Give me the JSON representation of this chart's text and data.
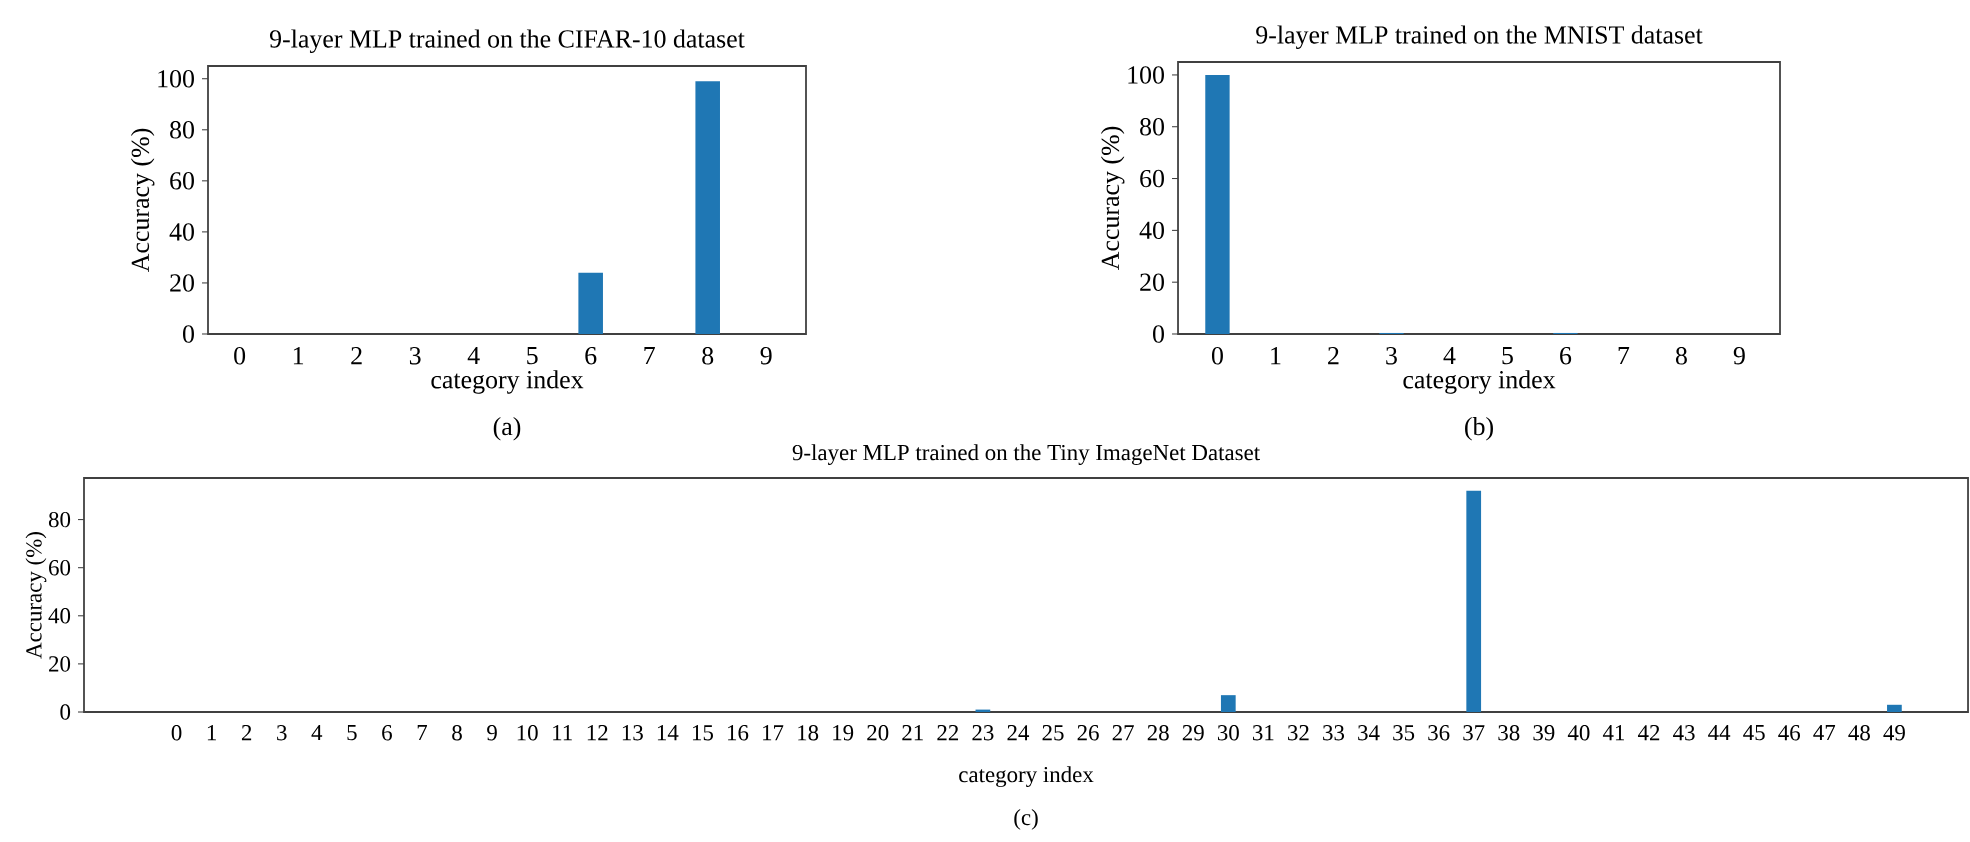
{
  "chart_data": [
    {
      "type": "bar",
      "title": "9-layer MLP trained on the CIFAR-10 dataset",
      "xlabel": "category index",
      "ylabel": "Accuracy (%)",
      "categories": [
        "0",
        "1",
        "2",
        "3",
        "4",
        "5",
        "6",
        "7",
        "8",
        "9"
      ],
      "values": [
        0,
        0,
        0,
        0,
        0,
        0,
        24,
        0,
        99,
        0
      ],
      "color": "#1f77b4",
      "ylim": [
        0,
        105
      ],
      "yticks": [
        0,
        20,
        40,
        60,
        80,
        100
      ],
      "annotations": [
        "(a)"
      ]
    },
    {
      "type": "bar",
      "title": "9-layer MLP trained on the MNIST dataset",
      "xlabel": "category index",
      "ylabel": "Accuracy (%)",
      "categories": [
        "0",
        "1",
        "2",
        "3",
        "4",
        "5",
        "6",
        "7",
        "8",
        "9"
      ],
      "values": [
        100,
        0,
        0,
        0.4,
        0,
        0,
        0.4,
        0,
        0,
        0
      ],
      "color": "#1f77b4",
      "ylim": [
        0,
        105
      ],
      "yticks": [
        0,
        20,
        40,
        60,
        80,
        100
      ],
      "annotations": [
        "(b)"
      ]
    },
    {
      "type": "bar",
      "title": "9-layer MLP trained on the Tiny ImageNet Dataset",
      "xlabel": "category index",
      "ylabel": "Accuracy (%)",
      "categories": [
        "0",
        "1",
        "2",
        "3",
        "4",
        "5",
        "6",
        "7",
        "8",
        "9",
        "10",
        "11",
        "12",
        "13",
        "14",
        "15",
        "16",
        "17",
        "18",
        "19",
        "20",
        "21",
        "22",
        "23",
        "24",
        "25",
        "26",
        "27",
        "28",
        "29",
        "30",
        "31",
        "32",
        "33",
        "34",
        "35",
        "36",
        "37",
        "38",
        "39",
        "40",
        "41",
        "42",
        "43",
        "44",
        "45",
        "46",
        "47",
        "48",
        "49"
      ],
      "values": [
        0,
        0,
        0,
        0,
        0,
        0,
        0,
        0,
        0,
        0,
        0,
        0,
        0,
        0,
        0,
        0,
        0,
        0,
        0,
        0,
        0,
        0,
        0,
        1,
        0,
        0,
        0,
        0,
        0,
        0,
        7,
        0,
        0,
        0,
        0,
        0,
        0,
        92,
        0,
        0,
        0,
        0,
        0,
        0,
        0,
        0,
        0,
        0,
        0,
        3
      ],
      "color": "#1f77b4",
      "ylim": [
        0,
        97.3
      ],
      "yticks": [
        0,
        20,
        40,
        60,
        80
      ],
      "annotations": [
        "(c)"
      ]
    }
  ]
}
